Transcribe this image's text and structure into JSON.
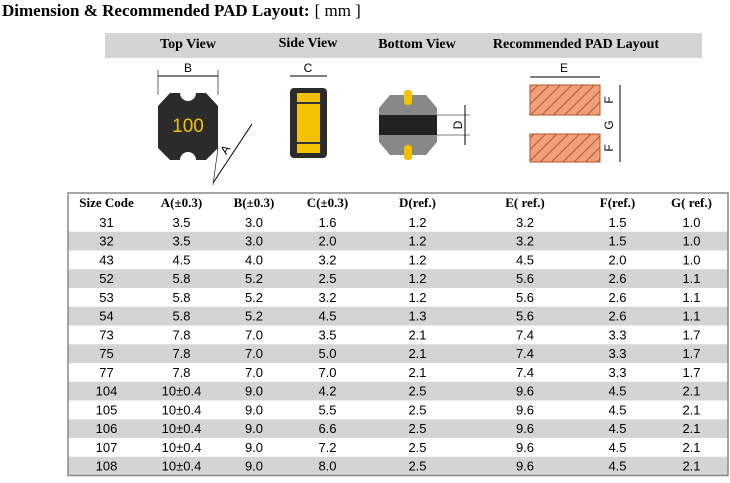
{
  "title": {
    "bold": "Dimension & Recommended PAD Layout:",
    "unit": "[ mm ]"
  },
  "views": {
    "headers": [
      "Top View",
      "Side View",
      "Bottom View",
      "Recommended PAD Layout"
    ],
    "top": {
      "marking": "100",
      "width_label": "B",
      "diag_label": "A"
    },
    "side": {
      "width_label": "C"
    },
    "bottom": {
      "height_label": "D"
    },
    "pad": {
      "width_label": "E",
      "labels": [
        "F",
        "G",
        "F"
      ]
    }
  },
  "table": {
    "header": [
      "Size Code",
      "A(±0.3)",
      "B(±0.3)",
      "C(±0.3)",
      "D(ref.)",
      "E( ref.)",
      "F(ref.)",
      "G( ref.)"
    ],
    "rows": [
      [
        "31",
        "3.5",
        "3.0",
        "1.6",
        "1.2",
        "3.2",
        "1.5",
        "1.0"
      ],
      [
        "32",
        "3.5",
        "3.0",
        "2.0",
        "1.2",
        "3.2",
        "1.5",
        "1.0"
      ],
      [
        "43",
        "4.5",
        "4.0",
        "3.2",
        "1.2",
        "4.5",
        "2.0",
        "1.0"
      ],
      [
        "52",
        "5.8",
        "5.2",
        "2.5",
        "1.2",
        "5.6",
        "2.6",
        "1.1"
      ],
      [
        "53",
        "5.8",
        "5.2",
        "3.2",
        "1.2",
        "5.6",
        "2.6",
        "1.1"
      ],
      [
        "54",
        "5.8",
        "5.2",
        "4.5",
        "1.3",
        "5.6",
        "2.6",
        "1.1"
      ],
      [
        "73",
        "7.8",
        "7.0",
        "3.5",
        "2.1",
        "7.4",
        "3.3",
        "1.7"
      ],
      [
        "75",
        "7.8",
        "7.0",
        "5.0",
        "2.1",
        "7.4",
        "3.3",
        "1.7"
      ],
      [
        "77",
        "7.8",
        "7.0",
        "7.0",
        "2.1",
        "7.4",
        "3.3",
        "1.7"
      ],
      [
        "104",
        "10±0.4",
        "9.0",
        "4.2",
        "2.5",
        "9.6",
        "4.5",
        "2.1"
      ],
      [
        "105",
        "10±0.4",
        "9.0",
        "5.5",
        "2.5",
        "9.6",
        "4.5",
        "2.1"
      ],
      [
        "106",
        "10±0.4",
        "9.0",
        "6.6",
        "2.5",
        "9.6",
        "4.5",
        "2.1"
      ],
      [
        "107",
        "10±0.4",
        "9.0",
        "7.2",
        "2.5",
        "9.6",
        "4.5",
        "2.1"
      ],
      [
        "108",
        "10±0.4",
        "9.0",
        "8.0",
        "2.5",
        "9.6",
        "4.5",
        "2.1"
      ]
    ]
  }
}
